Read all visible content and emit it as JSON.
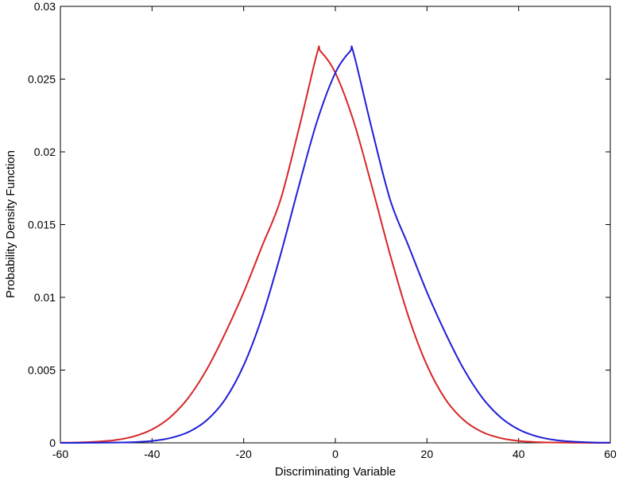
{
  "chart_data": {
    "type": "line",
    "xlabel": "Discriminating Variable",
    "ylabel": "Probability Density Function",
    "xlim": [
      -60,
      60
    ],
    "ylim": [
      0,
      0.03
    ],
    "x_ticks": [
      "-60",
      "-40",
      "-20",
      "0",
      "20",
      "40",
      "60"
    ],
    "y_ticks": [
      "0",
      "0.005",
      "0.01",
      "0.015",
      "0.02",
      "0.025",
      "0.03"
    ],
    "grid": false,
    "legend": null,
    "series": [
      {
        "color": "#d62728",
        "x": [
          -60,
          -56,
          -52,
          -48,
          -44,
          -40,
          -36,
          -32,
          -28,
          -24,
          -20,
          -16,
          -12,
          -8,
          -4,
          -3.2,
          0,
          4,
          8,
          12,
          16,
          20,
          24,
          28,
          32,
          36,
          40,
          44,
          48,
          52,
          56,
          60
        ],
        "y": [
          1e-05,
          3e-05,
          8e-05,
          0.00019,
          0.00044,
          0.00092,
          0.00177,
          0.00313,
          0.00508,
          0.00756,
          0.01035,
          0.01351,
          0.01667,
          0.02153,
          0.02676,
          0.0269,
          0.02543,
          0.02209,
          0.0176,
          0.01288,
          0.00864,
          0.00533,
          0.00301,
          0.00157,
          0.00075,
          0.00033,
          0.00013,
          5e-05,
          2e-05,
          1e-05,
          0.0,
          0.0
        ]
      },
      {
        "color": "#1f1fd6",
        "x": [
          -60,
          -56,
          -52,
          -48,
          -44,
          -40,
          -36,
          -32,
          -28,
          -24,
          -20,
          -16,
          -12,
          -8,
          -4,
          0,
          3.2,
          4,
          8,
          12,
          16,
          20,
          24,
          28,
          32,
          36,
          40,
          44,
          48,
          52,
          56,
          60
        ],
        "y": [
          0.0,
          0.0,
          1e-05,
          2e-05,
          5e-05,
          0.00013,
          0.00033,
          0.00075,
          0.00157,
          0.00301,
          0.00533,
          0.00864,
          0.01288,
          0.0176,
          0.02209,
          0.02543,
          0.0269,
          0.02676,
          0.02153,
          0.01667,
          0.01351,
          0.01035,
          0.00756,
          0.00508,
          0.00313,
          0.00177,
          0.00092,
          0.00044,
          0.00019,
          8e-05,
          3e-05,
          1e-05
        ]
      }
    ]
  }
}
